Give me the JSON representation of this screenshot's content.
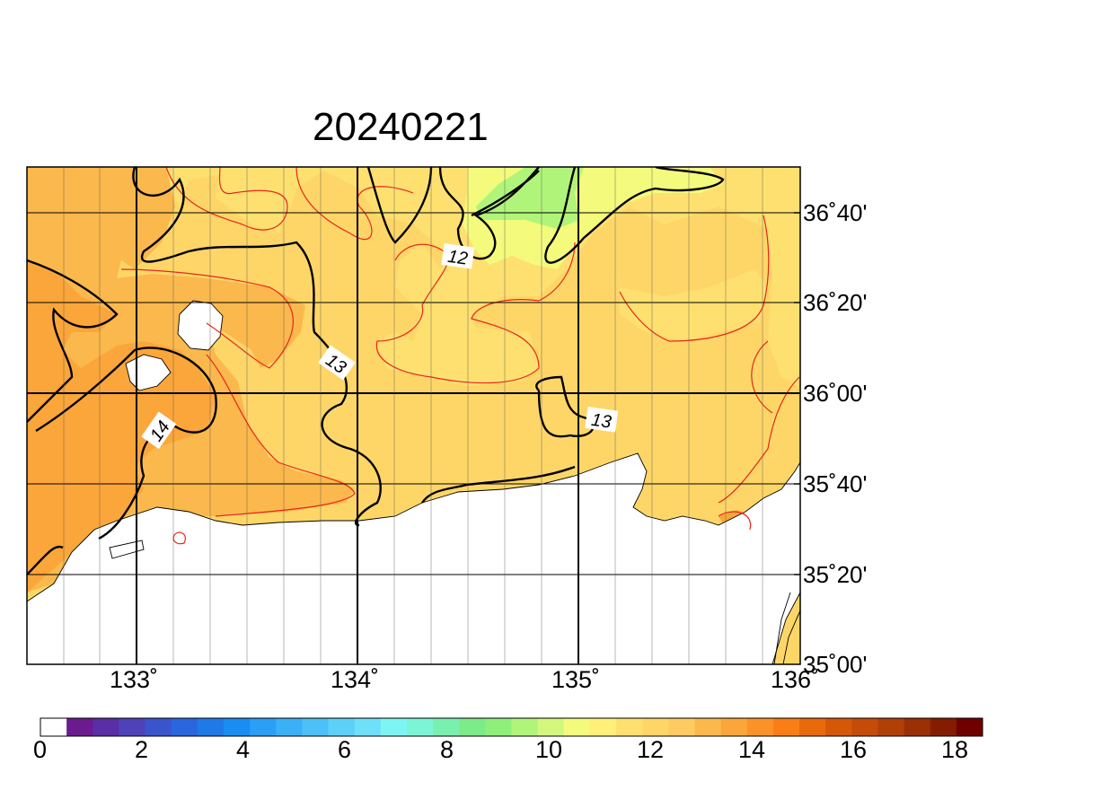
{
  "title": "20240221",
  "map": {
    "lon_range": [
      132.5,
      136.0
    ],
    "lat_range": [
      35.0,
      36.917
    ],
    "lat_ticks": [
      {
        "value": 36.667,
        "label": "36˚40'"
      },
      {
        "value": 36.333,
        "label": "36˚20'"
      },
      {
        "value": 36.0,
        "label": "36˚00'"
      },
      {
        "value": 35.667,
        "label": "35˚40'"
      },
      {
        "value": 35.333,
        "label": "35˚20'"
      },
      {
        "value": 35.0,
        "label": "35˚00'"
      }
    ],
    "lon_ticks": [
      {
        "value": 133,
        "label": "133˚"
      },
      {
        "value": 134,
        "label": "134˚"
      },
      {
        "value": 135,
        "label": "135˚"
      },
      {
        "value": 136,
        "label": "136˚"
      }
    ],
    "contour_labels": [
      {
        "text": "12",
        "lon": 134.45,
        "lat": 36.57
      },
      {
        "text": "13",
        "lon": 133.9,
        "lat": 36.16
      },
      {
        "text": "14",
        "lon": 133.1,
        "lat": 35.9
      },
      {
        "text": "13",
        "lon": 135.1,
        "lat": 35.94
      }
    ]
  },
  "colorbar": {
    "labels": [
      "0",
      "2",
      "4",
      "6",
      "8",
      "10",
      "12",
      "14",
      "16",
      "18"
    ],
    "colors": [
      "#ffffff",
      "#6b1a8f",
      "#5a2ea4",
      "#4f42b8",
      "#3a55cc",
      "#2a66dd",
      "#1f7ae8",
      "#1a8df2",
      "#2a9ff5",
      "#3bb0f6",
      "#4cc0f7",
      "#5dd0f8",
      "#70e0fa",
      "#7ef5f5",
      "#7cf5d7",
      "#7af0b0",
      "#7cec8a",
      "#8ef07a",
      "#b0f57a",
      "#d2f77c",
      "#f4fa7c",
      "#fef078",
      "#fee070",
      "#fed668",
      "#fecb62",
      "#fbb84c",
      "#fba63a",
      "#fb9228",
      "#f97e16",
      "#e96a0a",
      "#d45808",
      "#c44c08",
      "#b04006",
      "#9a3004",
      "#841c02",
      "#700000"
    ]
  }
}
